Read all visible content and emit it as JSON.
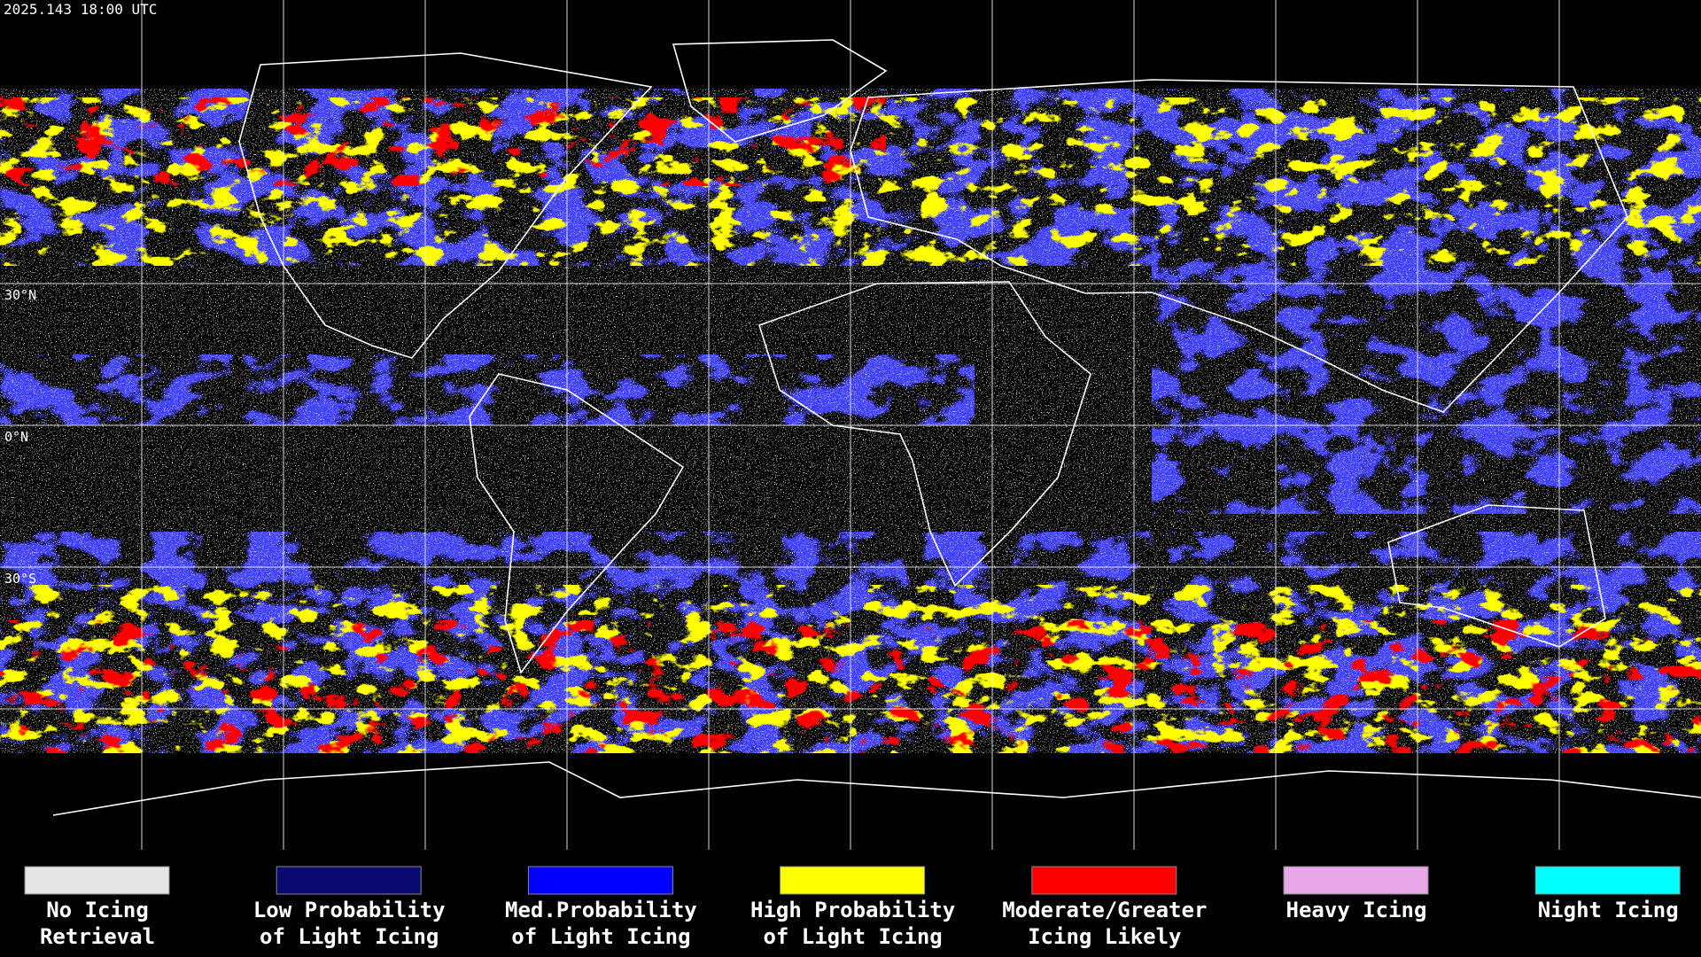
{
  "header": {
    "timestamp": "2025.143 18:00 UTC"
  },
  "map": {
    "lat_labels": [
      "30°N",
      "0°N",
      "30°S"
    ]
  },
  "legend": {
    "items": [
      {
        "color": "#e6e6e6",
        "lines": [
          "No Icing",
          "Retrieval"
        ]
      },
      {
        "color": "#0a0a70",
        "lines": [
          "Low Probability",
          "of Light Icing"
        ]
      },
      {
        "color": "#0000ff",
        "lines": [
          "Med.Probability",
          "of Light Icing"
        ]
      },
      {
        "color": "#ffff00",
        "lines": [
          "High Probability",
          "of Light Icing"
        ]
      },
      {
        "color": "#ff0000",
        "lines": [
          "Moderate/Greater",
          "Icing Likely"
        ]
      },
      {
        "color": "#e8a8e8",
        "lines": [
          "Heavy Icing"
        ]
      },
      {
        "color": "#00ffff",
        "lines": [
          "Night Icing"
        ]
      }
    ]
  }
}
